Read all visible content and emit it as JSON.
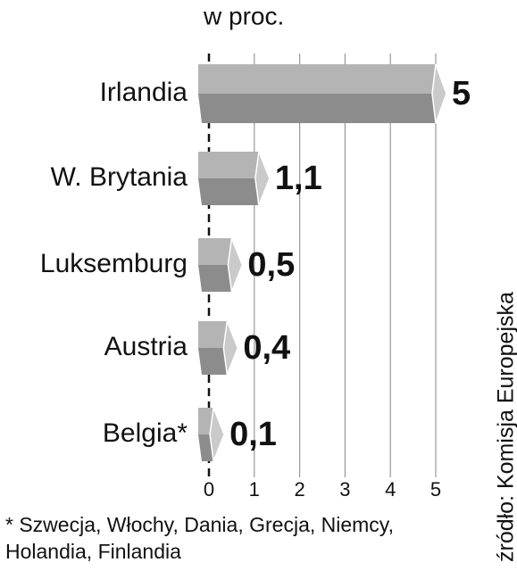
{
  "chart_data": {
    "type": "bar",
    "orientation": "horizontal",
    "title": "w proc.",
    "categories": [
      "Irlandia",
      "W. Brytania",
      "Luksemburg",
      "Austria",
      "Belgia*"
    ],
    "values": [
      5,
      1.1,
      0.5,
      0.4,
      0.1
    ],
    "value_labels": [
      "5",
      "1,1",
      "0,5",
      "0,4",
      "0,1"
    ],
    "color": "#8c8c8c",
    "xlim": [
      0,
      5
    ],
    "xticks": [
      0,
      1,
      2,
      3,
      4,
      5
    ],
    "grid": true,
    "source": "źródło: Komisja Europejska",
    "note": [
      "* Szwecja, Włochy, Dania, Grecja, Niemcy,",
      "Holandia, Finlandia"
    ]
  }
}
